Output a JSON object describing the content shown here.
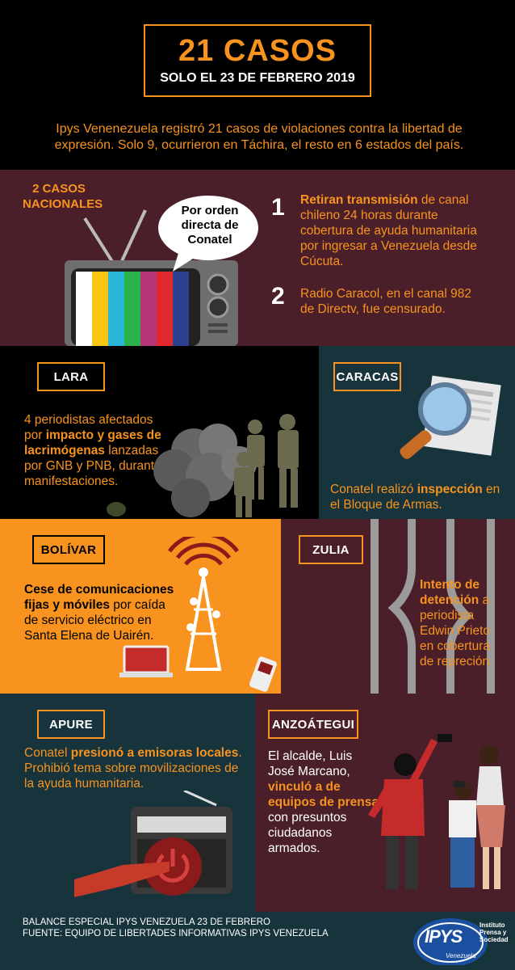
{
  "header": {
    "title": "21 CASOS",
    "subtitle": "SOLO EL 23 DE FEBRERO 2019",
    "intro": "Ipys Venenezuela registró 21 casos de violaciones contra la libertad de expresión. Solo 9, ocurrieron en Táchira, el resto en 6 estados del país."
  },
  "nacionales": {
    "label_line1": "2 CASOS",
    "label_line2": "NACIONALES",
    "bubble_line1": "Por orden",
    "bubble_line2": "directa de",
    "bubble_line3": "Conatel",
    "item1_number": "1",
    "item1_bold": "Retiran transmisión",
    "item1_rest": " de canal chileno 24 horas durante cobertura de ayuda humanitaria por ingresar a Venezuela desde Cúcuta.",
    "item2_number": "2",
    "item2_text": "Radio Caracol, en el canal 982 de Directv, fue censurado."
  },
  "lara": {
    "label": "LARA",
    "text_a": "4 periodistas afectados por ",
    "text_bold": "impacto y gases de lacrimógenas",
    "text_b": " lanzadas por GNB y PNB, durante manifestaciones."
  },
  "caracas": {
    "label": "CARACAS",
    "text_a": "Conatel realizó ",
    "text_bold": "inspección",
    "text_b": " en el Bloque de Armas."
  },
  "bolivar": {
    "label": "BOLÍVAR",
    "text_bold": "Cese de comunicaciones fijas y móviles",
    "text_b": " por caída de servicio eléctrico en Santa Elena de Uairén."
  },
  "zulia": {
    "label": "ZULIA",
    "text_bold": "Intento de detención",
    "text_b": " a periodista Edwin Prieto en cobertura de repreción."
  },
  "apure": {
    "label": "APURE",
    "text_a": "Conatel ",
    "text_bold": "presionó a emisoras locales",
    "text_b": ". Prohibió tema sobre movilizaciones de la ayuda humanitaria."
  },
  "anzoategui": {
    "label": "ANZOÁTEGUI",
    "text_a": "El alcalde, Luis José Marcano, ",
    "text_bold": "vinculó a de equipos de prensa",
    "text_b": " con presuntos ciudadanos armados."
  },
  "footer": {
    "line1": "BALANCE ESPECIAL IPYS VENEZUELA 23 DE FEBRERO",
    "line2": "FUENTE: EQUIPO DE LIBERTADES INFORMATIVAS IPYS VENEZUELA",
    "logo_text": "IPYS",
    "logo_sub1": "Instituto",
    "logo_sub2": "Prensa y",
    "logo_sub3": "Sociedad",
    "logo_country": "Venezuela"
  },
  "colors": {
    "orange": "#f7931e",
    "maroon": "#4a1f29",
    "teal": "#17343d",
    "dark": "#000000"
  }
}
